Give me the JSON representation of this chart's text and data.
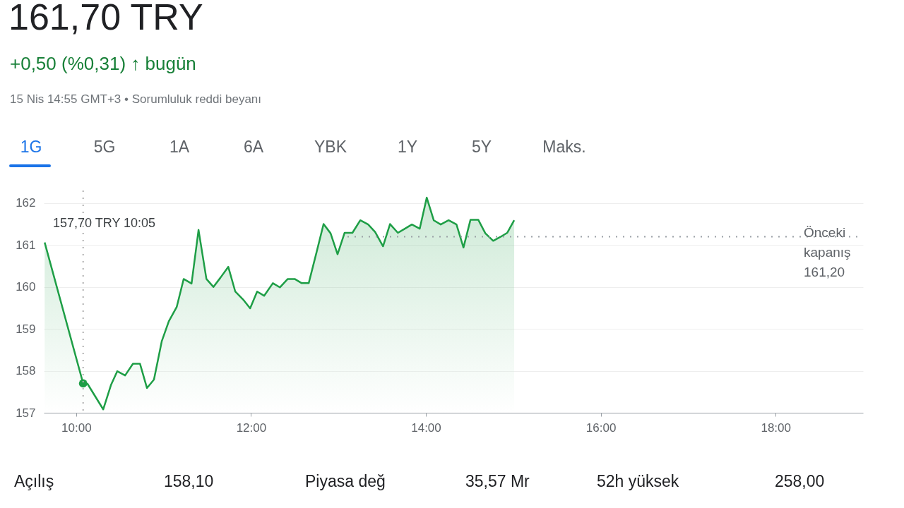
{
  "chart_data": {
    "type": "area",
    "title": "161,70 TRY",
    "subtitle": "+0,50 (%0,31) ↑ bugün",
    "annotations": [
      "15 Nis 14:55 GMT+3 • Sorumluluk reddi beyanı",
      "1G",
      "5G",
      "1A",
      "6A",
      "YBK",
      "1Y",
      "5Y",
      "Maks.",
      "Açılış",
      "158,10",
      "Piyasa değ",
      "35,57 Mr",
      "52h yüksek",
      "258,00",
      "157,70 TRY   10:05"
    ],
    "x": [
      9.64,
      10.08,
      10.13,
      10.31,
      10.4,
      10.47,
      10.56,
      10.65,
      10.73,
      10.81,
      10.89,
      10.98,
      11.06,
      11.15,
      11.23,
      11.32,
      11.4,
      11.49,
      11.57,
      11.65,
      11.74,
      11.82,
      11.91,
      11.99,
      12.07,
      12.15,
      12.25,
      12.33,
      12.42,
      12.5,
      12.58,
      12.66,
      12.75,
      12.83,
      12.91,
      12.99,
      13.07,
      13.16,
      13.25,
      13.34,
      13.42,
      13.51,
      13.59,
      13.68,
      13.76,
      13.84,
      13.93,
      14.01,
      14.09,
      14.17,
      14.26,
      14.35,
      14.43,
      14.51,
      14.6,
      14.68,
      14.77,
      14.85,
      14.93,
      15.01
    ],
    "series": [
      {
        "color": "#1e9e46",
        "values": [
          161.06,
          157.7,
          157.69,
          157.08,
          157.67,
          157.99,
          157.89,
          158.17,
          158.17,
          157.59,
          157.79,
          158.71,
          159.18,
          159.52,
          160.19,
          160.08,
          161.36,
          160.19,
          160.0,
          160.22,
          160.48,
          159.89,
          159.7,
          159.49,
          159.89,
          159.79,
          160.09,
          159.99,
          160.19,
          160.19,
          160.09,
          160.09,
          160.83,
          161.5,
          161.28,
          160.78,
          161.29,
          161.29,
          161.59,
          161.49,
          161.31,
          160.97,
          161.5,
          161.29,
          161.39,
          161.49,
          161.39,
          162.13,
          161.59,
          161.49,
          161.59,
          161.49,
          160.94,
          161.6,
          161.6,
          161.28,
          161.1,
          161.19,
          161.29,
          161.59
        ]
      },
      {
        "type": "scatter",
        "color": "#1e9e46",
        "x": [
          10.08
        ],
        "values": [
          157.7
        ]
      }
    ],
    "xlim": [
      9.63,
      19.0
    ],
    "xticks": [
      {
        "value": 10,
        "label": "10:00"
      },
      {
        "value": 12,
        "label": "12:00"
      },
      {
        "value": 14,
        "label": "14:00"
      },
      {
        "value": 16,
        "label": "16:00"
      },
      {
        "value": 18,
        "label": "18:00"
      }
    ],
    "ylim": [
      157,
      162.3
    ],
    "yticks": [
      157,
      158,
      159,
      160,
      161,
      162
    ],
    "ref_lines": [
      {
        "axis": "y",
        "value": 161.2,
        "label": "Önceki kapanış 161,20",
        "line_style": "dotted",
        "color": "#9aa0a6"
      },
      {
        "axis": "x",
        "value": 10.08,
        "line_style": "dotted",
        "color": "#b0b0b0"
      }
    ],
    "grid": "y"
  }
}
